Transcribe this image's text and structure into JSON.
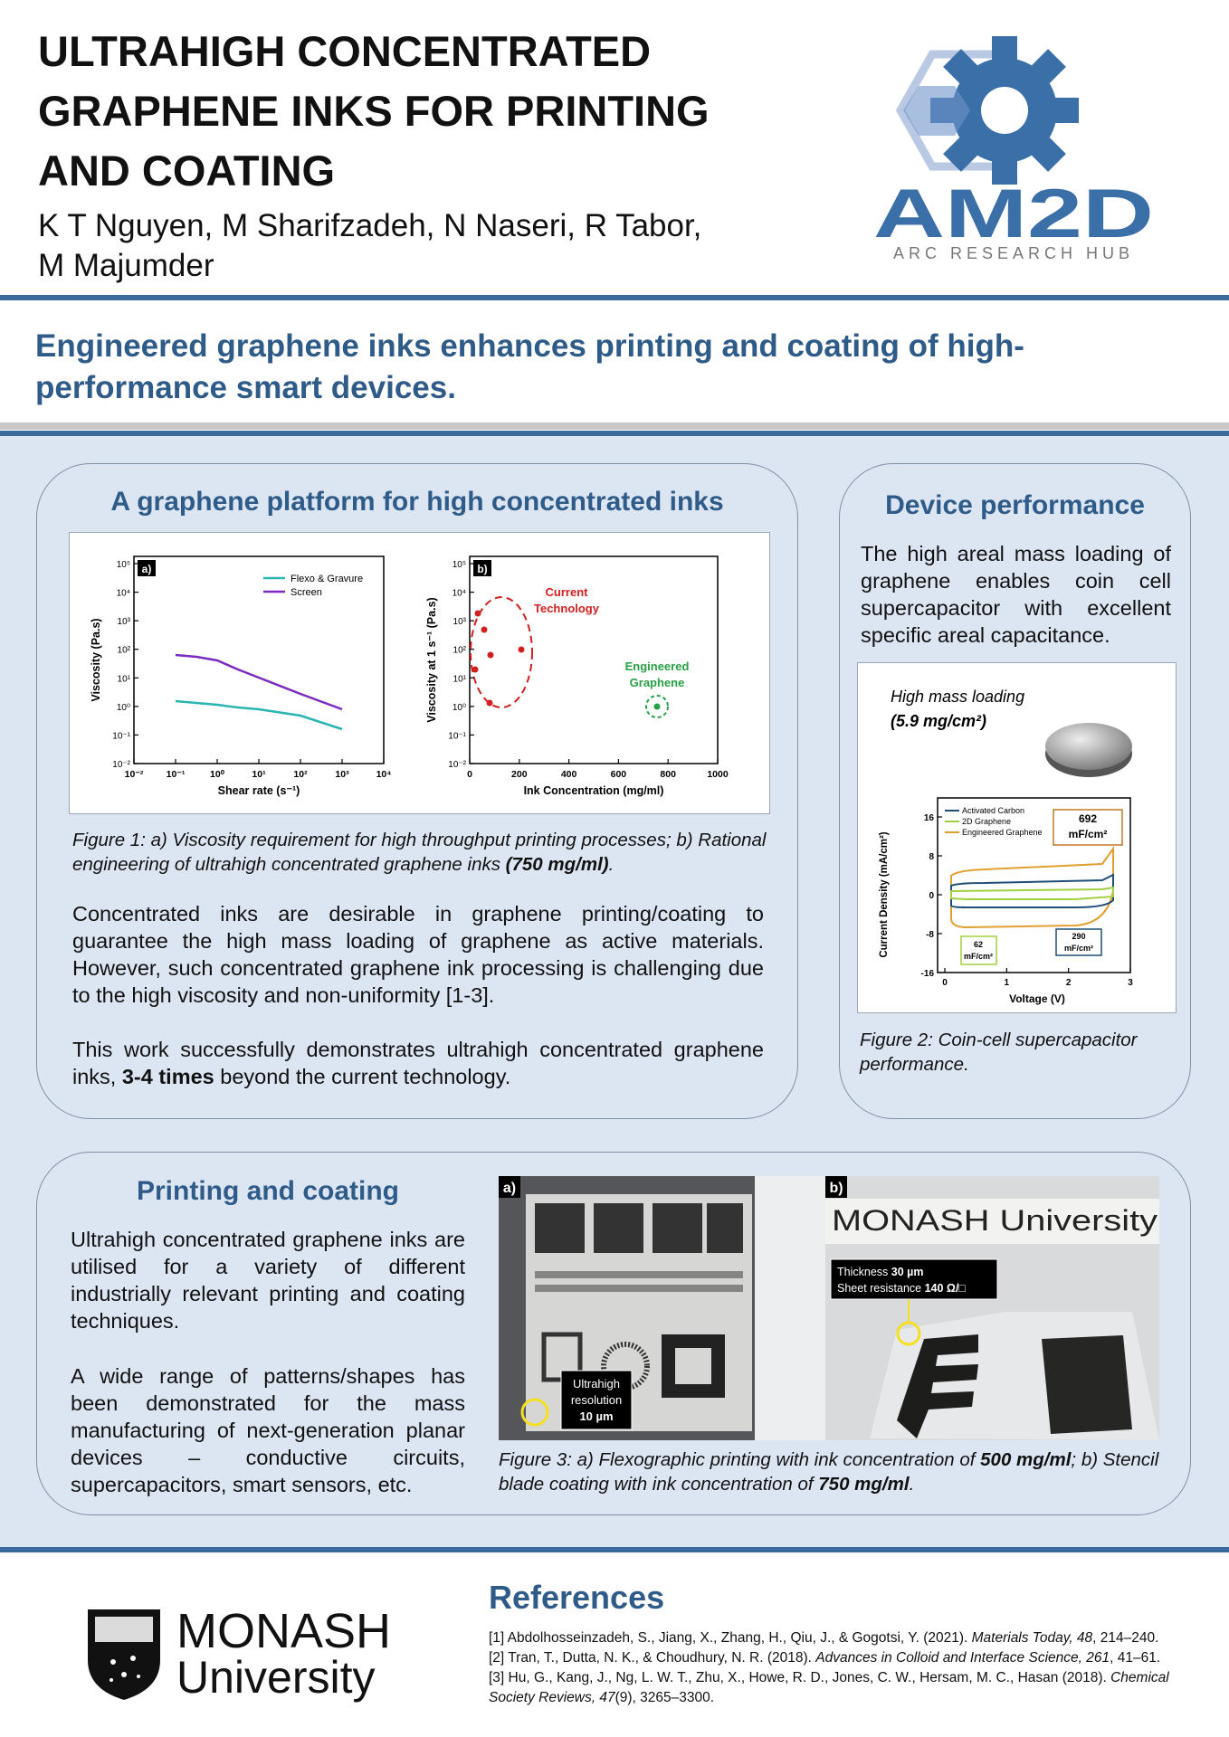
{
  "header": {
    "title_lines": [
      "ULTRAHIGH CONCENTRATED",
      "GRAPHENE INKS FOR PRINTING",
      "AND COATING"
    ],
    "authors_lines": [
      "K T Nguyen, M Sharifzadeh, N Naseri, R Tabor,",
      "M Majumder"
    ]
  },
  "logo": {
    "name": "AM2D",
    "tagline": "ARC RESEARCH HUB"
  },
  "headline": {
    "lines": [
      "Engineered graphene inks enhances printing and coating of high-",
      "performance smart devices."
    ]
  },
  "platform": {
    "heading": "A graphene platform for high concentrated inks",
    "figure": {
      "a": {
        "panel": "a)",
        "y_label": "Viscosity (Pa.s)",
        "x_label": "Shear rate (s⁻¹)",
        "y_tick_labels": [
          "10⁵",
          "10⁴",
          "10³",
          "10²",
          "10¹",
          "10⁰",
          "10⁻¹",
          "10⁻²"
        ],
        "x_tick_labels": [
          "10⁻²",
          "10⁻¹",
          "10⁰",
          "10¹",
          "10²",
          "10³",
          "10⁴"
        ],
        "legend": [
          "Flexo & Gravure",
          "Screen"
        ]
      },
      "b": {
        "panel": "b)",
        "y_label": "Viscosity at 1 s⁻¹ (Pa.s)",
        "x_label": "Ink Concentration (mg/ml)",
        "y_tick_labels": [
          "10⁵",
          "10⁴",
          "10³",
          "10²",
          "10¹",
          "10⁰",
          "10⁻¹",
          "10⁻²"
        ],
        "x_tick_labels": [
          "0",
          "200",
          "400",
          "600",
          "800",
          "1000"
        ],
        "current_lines": [
          "Current",
          "Technology"
        ],
        "engineered_lines": [
          "Engineered",
          "Graphene"
        ]
      }
    },
    "caption": {
      "runs": [
        {
          "text": "Figure 1: a) Viscosity requirement for high throughput printing processes; b) Rational engineering of ultrahigh concentrated graphene inks ",
          "style": "italic"
        },
        {
          "text": "(750 mg/ml)",
          "style": "bold-italic"
        },
        {
          "text": ".",
          "style": "italic"
        }
      ]
    },
    "paragraphs": [
      {
        "runs": [
          {
            "text": "Concentrated inks are desirable in graphene printing/coating to guarantee the high mass loading of graphene as active materials. However, such concentrated graphene ink processing is challenging due to the high viscosity and non-uniformity [1-3].",
            "style": "plain"
          }
        ]
      },
      {
        "runs": [
          {
            "text": "This work successfully demonstrates ultrahigh concentrated graphene inks, ",
            "style": "plain"
          },
          {
            "text": "3-4 times",
            "style": "bold"
          },
          {
            "text": " beyond the current technology.",
            "style": "plain"
          }
        ]
      }
    ]
  },
  "device": {
    "heading": "Device performance",
    "paragraph": {
      "runs": [
        {
          "text": "The high areal mass loading of graphene enables coin cell supercapacitor with excellent specific areal capacitance.",
          "style": "plain"
        }
      ]
    },
    "figure": {
      "loading_label": "High mass loading",
      "loading_value": "(5.9 mg/cm²)",
      "legend": [
        "Activated Carbon",
        "2D Graphene",
        "Engineered Graphene"
      ],
      "boxes": [
        {
          "value": "692",
          "unit": "mF/cm²"
        },
        {
          "value": "62",
          "unit": "mF/cm²"
        },
        {
          "value": "290",
          "unit": "mF/cm²"
        }
      ],
      "y_label": "Current Density (mA/cm²)",
      "x_label": "Voltage (V)",
      "y_tick_labels": [
        "16",
        "8",
        "0",
        "-8",
        "-16"
      ],
      "x_tick_labels": [
        "0",
        "1",
        "2",
        "3"
      ]
    },
    "caption": {
      "runs": [
        {
          "text": "Figure 2: Coin-cell supercapacitor performance.",
          "style": "italic"
        }
      ]
    }
  },
  "printing": {
    "heading": "Printing and coating",
    "paragraphs": [
      {
        "runs": [
          {
            "text": "Ultrahigh concentrated graphene inks are utilised for a variety of different industrially relevant printing and coating techniques.",
            "style": "plain"
          }
        ]
      },
      {
        "runs": [
          {
            "text": "A wide range of patterns/shapes has been demonstrated for the mass manufacturing of next-generation planar devices – conductive circuits, supercapacitors, smart sensors, etc.",
            "style": "plain"
          }
        ]
      }
    ],
    "figure": {
      "a": {
        "panel": "a)",
        "note_lines": [
          "Ultrahigh",
          "resolution",
          "10 µm"
        ]
      },
      "b": {
        "panel": "b)",
        "ruler_text": "MONASH University",
        "note": [
          {
            "label": "Thickness ",
            "value": "30 µm"
          },
          {
            "label": "Sheet resistance ",
            "value": "140 Ω/□"
          }
        ]
      }
    },
    "caption": {
      "runs": [
        {
          "text": "Figure 3: a) Flexographic printing with ink concentration of ",
          "style": "italic"
        },
        {
          "text": "500 mg/ml",
          "style": "bold-italic"
        },
        {
          "text": "; b) Stencil blade coating with ink concentration of ",
          "style": "italic"
        },
        {
          "text": "750 mg/ml",
          "style": "bold-italic"
        },
        {
          "text": ".",
          "style": "italic"
        }
      ]
    }
  },
  "footer": {
    "university": {
      "name": "MONASH",
      "subname": "University"
    },
    "references": {
      "heading": "References",
      "items": [
        {
          "runs": [
            {
              "text": "[1] Abdolhosseinzadeh, S., Jiang, X., Zhang, H., Qiu, J., & Gogotsi, Y. (2021). ",
              "style": "plain"
            },
            {
              "text": "Materials Today, 48",
              "style": "italic"
            },
            {
              "text": ", 214–240.",
              "style": "plain"
            }
          ]
        },
        {
          "runs": [
            {
              "text": "[2] Tran, T., Dutta, N. K., & Choudhury, N. R. (2018). ",
              "style": "plain"
            },
            {
              "text": "Advances in Colloid and Interface Science, 261",
              "style": "italic"
            },
            {
              "text": ", 41–61.",
              "style": "plain"
            }
          ]
        },
        {
          "runs": [
            {
              "text": "[3] Hu, G., Kang, J., Ng, L. W. T., Zhu, X., Howe, R. D., Jones, C. W., Hersam, M. C., Hasan (2018). ",
              "style": "plain"
            },
            {
              "text": "Chemical Society Reviews, 47",
              "style": "italic"
            },
            {
              "text": "(9), 3265–3300.",
              "style": "plain"
            }
          ]
        }
      ]
    }
  }
}
